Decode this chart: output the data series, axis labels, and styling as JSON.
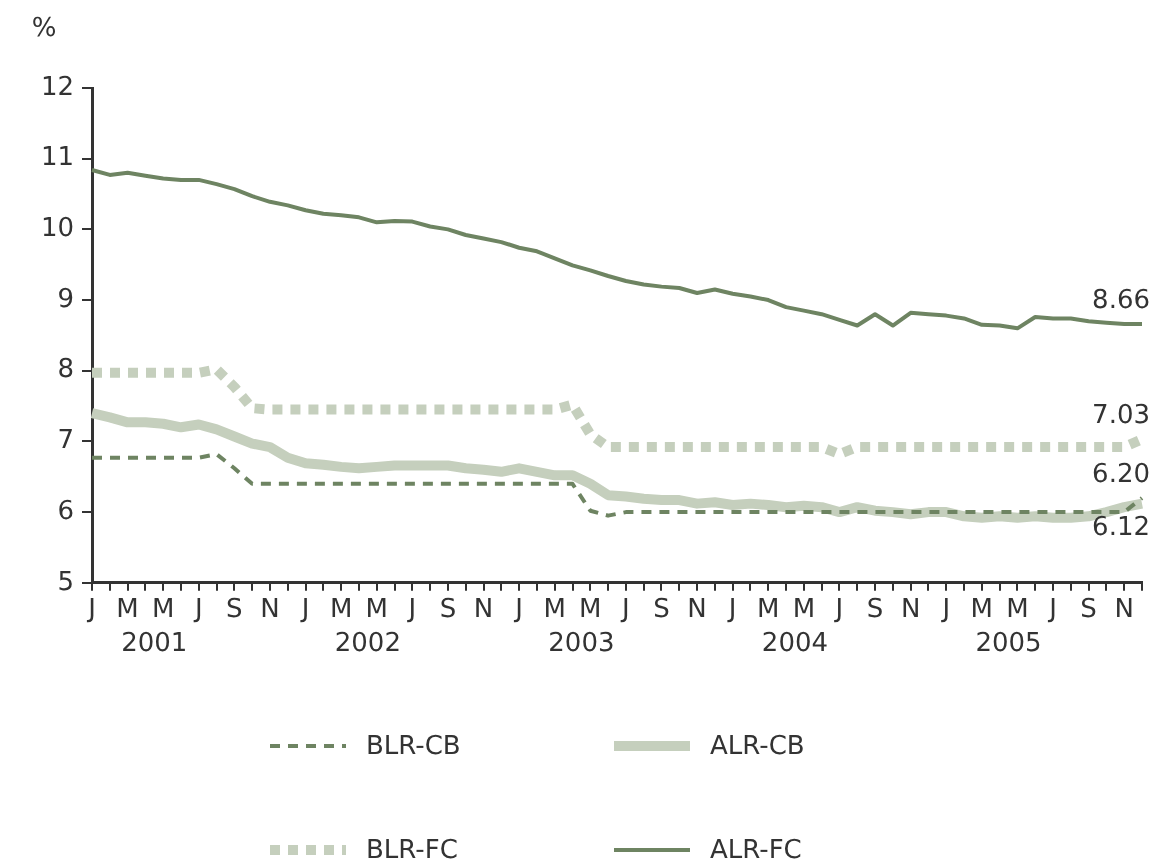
{
  "chart_data": {
    "type": "line",
    "ylabel": "%",
    "categories": [
      "J",
      null,
      "M",
      null,
      "M",
      null,
      "J",
      null,
      "S",
      null,
      "N",
      null,
      "J",
      null,
      "M",
      null,
      "M",
      null,
      "J",
      null,
      "S",
      null,
      "N",
      null,
      "J",
      null,
      "M",
      null,
      "M",
      null,
      "J",
      null,
      "S",
      null,
      "N",
      null,
      "J",
      null,
      "M",
      null,
      "M",
      null,
      "J",
      null,
      "S",
      null,
      "N",
      null,
      "J",
      null,
      "M",
      null,
      "M",
      null,
      "J",
      null,
      "S",
      null,
      "N",
      null
    ],
    "ylim": [
      5,
      12
    ],
    "yticks": [
      5,
      6,
      7,
      8,
      9,
      10,
      11,
      12
    ],
    "grid": false,
    "legend": "bottom",
    "series": [
      {
        "name": "BLR-CB",
        "color": "#6e8462",
        "line_style": "dashed",
        "values": [
          6.77,
          6.77,
          6.77,
          6.77,
          6.77,
          6.77,
          6.77,
          6.82,
          6.62,
          6.4,
          6.4,
          6.4,
          6.4,
          6.4,
          6.4,
          6.4,
          6.4,
          6.4,
          6.4,
          6.4,
          6.4,
          6.4,
          6.4,
          6.4,
          6.4,
          6.4,
          6.4,
          6.4,
          6.02,
          5.95,
          6.0,
          6.0,
          6.0,
          6.0,
          6.0,
          6.0,
          6.0,
          6.0,
          6.0,
          6.0,
          6.0,
          6.0,
          6.0,
          6.0,
          6.0,
          6.0,
          6.0,
          6.0,
          6.0,
          6.0,
          6.0,
          6.0,
          6.0,
          6.0,
          6.0,
          6.0,
          6.0,
          6.0,
          6.0,
          6.2
        ]
      },
      {
        "name": "ALR-CB",
        "color": "#c5cfbd",
        "line_style": "solid",
        "values": [
          7.4,
          7.34,
          7.27,
          7.27,
          7.25,
          7.2,
          7.24,
          7.17,
          7.07,
          6.97,
          6.92,
          6.77,
          6.69,
          6.67,
          6.64,
          6.62,
          6.64,
          6.66,
          6.66,
          6.66,
          6.66,
          6.62,
          6.6,
          6.57,
          6.62,
          6.57,
          6.52,
          6.52,
          6.4,
          6.24,
          6.22,
          6.19,
          6.17,
          6.17,
          6.12,
          6.14,
          6.1,
          6.12,
          6.1,
          6.07,
          6.09,
          6.07,
          6.0,
          6.07,
          6.02,
          6.0,
          5.97,
          6.0,
          6.0,
          5.94,
          5.92,
          5.94,
          5.92,
          5.94,
          5.92,
          5.92,
          5.94,
          6.0,
          6.07,
          6.12
        ]
      },
      {
        "name": "BLR-FC",
        "color": "#c5cfbd",
        "line_style": "dotted",
        "values": [
          7.97,
          7.97,
          7.97,
          7.97,
          7.97,
          7.97,
          7.97,
          8.02,
          7.77,
          7.47,
          7.45,
          7.45,
          7.45,
          7.45,
          7.45,
          7.45,
          7.45,
          7.45,
          7.45,
          7.45,
          7.45,
          7.45,
          7.45,
          7.45,
          7.45,
          7.45,
          7.45,
          7.52,
          7.1,
          6.92,
          6.92,
          6.92,
          6.92,
          6.92,
          6.92,
          6.92,
          6.92,
          6.92,
          6.92,
          6.92,
          6.92,
          6.92,
          6.82,
          6.92,
          6.92,
          6.92,
          6.92,
          6.92,
          6.92,
          6.92,
          6.92,
          6.92,
          6.92,
          6.92,
          6.92,
          6.92,
          6.92,
          6.92,
          6.92,
          7.03
        ]
      },
      {
        "name": "ALR-FC",
        "color": "#6e8462",
        "line_style": "solid",
        "values": [
          10.84,
          10.77,
          10.8,
          10.76,
          10.72,
          10.7,
          10.7,
          10.64,
          10.57,
          10.47,
          10.39,
          10.34,
          10.27,
          10.22,
          10.2,
          10.17,
          10.1,
          10.12,
          10.11,
          10.04,
          10.0,
          9.92,
          9.87,
          9.82,
          9.74,
          9.69,
          9.59,
          9.49,
          9.42,
          9.34,
          9.27,
          9.22,
          9.19,
          9.17,
          9.1,
          9.15,
          9.09,
          9.05,
          9.0,
          8.9,
          8.85,
          8.8,
          8.72,
          8.64,
          8.8,
          8.64,
          8.82,
          8.8,
          8.78,
          8.74,
          8.65,
          8.64,
          8.6,
          8.76,
          8.74,
          8.74,
          8.7,
          8.68,
          8.66,
          8.66
        ]
      }
    ],
    "annotations": [
      "2001",
      "2002",
      "2003",
      "2004",
      "2005",
      {
        "text": "8.66",
        "y": 8.66
      },
      {
        "text": "7.03",
        "y": 7.03
      },
      {
        "text": "6.20",
        "y": 6.2
      },
      {
        "text": "6.12",
        "y": 6.12
      }
    ]
  }
}
